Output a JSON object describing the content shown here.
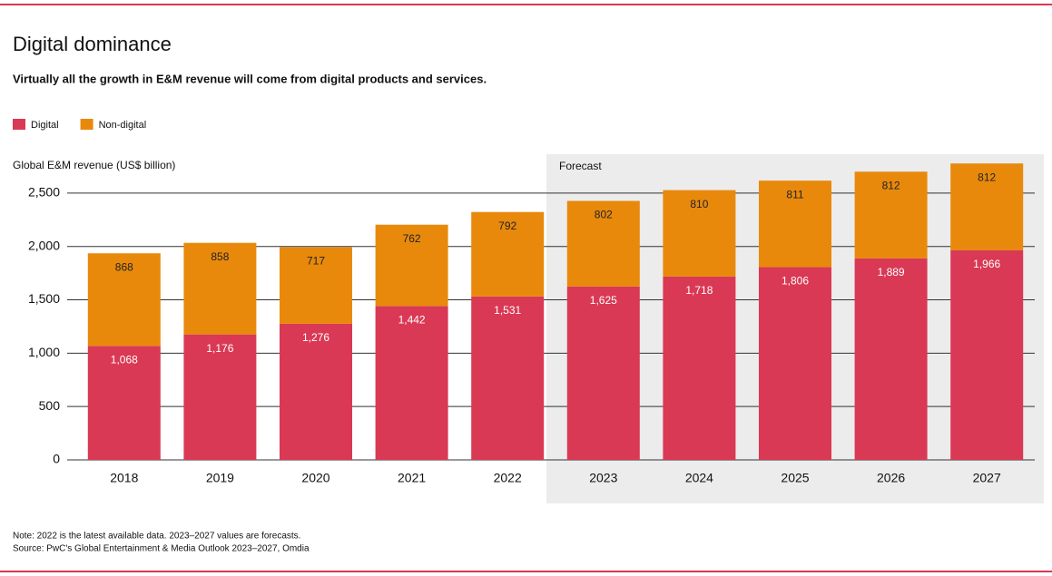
{
  "chart_data": {
    "type": "bar",
    "stacked": true,
    "title": "Digital dominance",
    "subtitle": "Virtually all the growth in E&M revenue will come from digital products and services.",
    "y_label": "Global E&M revenue (US$ billion)",
    "categories": [
      "2018",
      "2019",
      "2020",
      "2021",
      "2022",
      "2023",
      "2024",
      "2025",
      "2026",
      "2027"
    ],
    "series": [
      {
        "name": "Digital",
        "color": "#d93954",
        "values": [
          1068,
          1176,
          1276,
          1442,
          1531,
          1625,
          1718,
          1806,
          1889,
          1966
        ],
        "value_labels": [
          "1,068",
          "1,176",
          "1,276",
          "1,442",
          "1,531",
          "1,625",
          "1,718",
          "1,806",
          "1,889",
          "1,966"
        ]
      },
      {
        "name": "Non-digital",
        "color": "#e8890c",
        "values": [
          868,
          858,
          717,
          762,
          792,
          802,
          810,
          811,
          812,
          812
        ]
      }
    ],
    "ylim": [
      0,
      2800
    ],
    "yticks": [
      0,
      500,
      {
        "value": 1000,
        "label": "1,000"
      },
      {
        "value": 1500,
        "label": "1,500"
      },
      {
        "value": 2000,
        "label": "2,000"
      },
      {
        "value": 2500,
        "label": "2,500"
      }
    ],
    "grid": true,
    "legend": "top-left",
    "forecast": {
      "label": "Forecast",
      "start": "2023"
    },
    "note": "Note: 2022 is the latest available data. 2023–2027 values are forecasts.",
    "source": "Source: PwC's Global Entertainment & Media Outlook 2023–2027, Omdia"
  }
}
